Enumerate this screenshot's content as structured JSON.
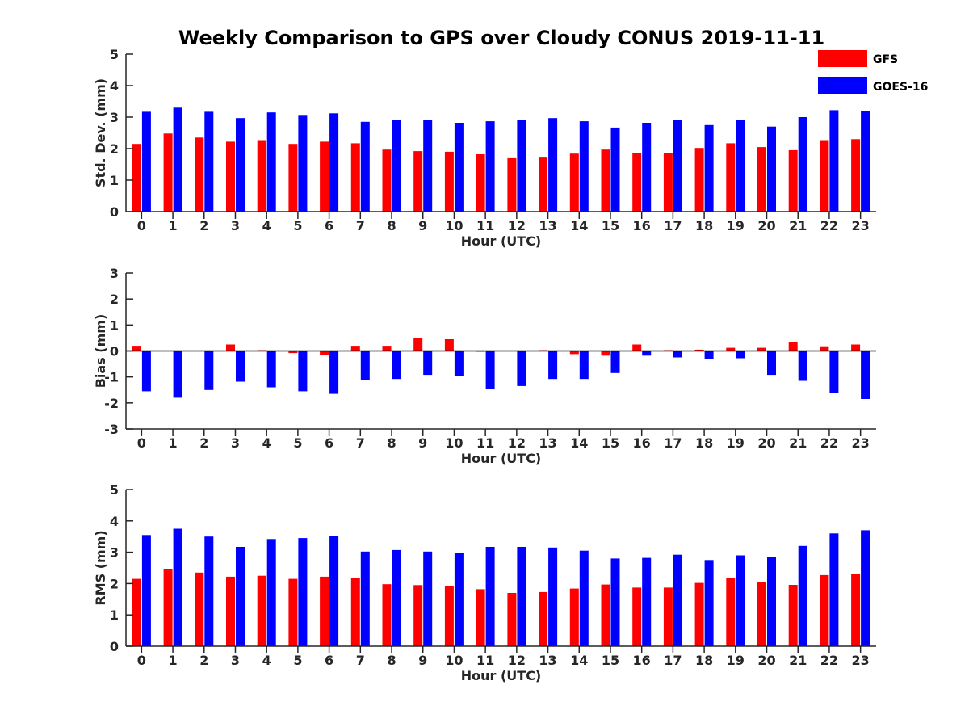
{
  "title": "Weekly Comparison to GPS over Cloudy CONUS 2019-11-11",
  "legend": {
    "placement": "top-right",
    "entries": [
      {
        "label": "GFS",
        "color": "#ff0000"
      },
      {
        "label": "GOES-16",
        "color": "#0000ff"
      }
    ]
  },
  "chart_data": [
    {
      "type": "bar",
      "xlabel": "Hour (UTC)",
      "ylabel": "Std. Dev. (mm)",
      "ylim": [
        0,
        5
      ],
      "yticks": [
        0,
        1,
        2,
        3,
        4,
        5
      ],
      "categories": [
        "0",
        "1",
        "2",
        "3",
        "4",
        "5",
        "6",
        "7",
        "8",
        "9",
        "10",
        "11",
        "12",
        "13",
        "14",
        "15",
        "16",
        "17",
        "18",
        "19",
        "20",
        "21",
        "22",
        "23"
      ],
      "series": [
        {
          "name": "GFS",
          "color": "#ff0000",
          "values": [
            2.15,
            2.48,
            2.35,
            2.22,
            2.27,
            2.15,
            2.22,
            2.17,
            1.97,
            1.92,
            1.9,
            1.82,
            1.72,
            1.74,
            1.84,
            1.97,
            1.87,
            1.87,
            2.02,
            2.17,
            2.05,
            1.95,
            2.27,
            2.3
          ]
        },
        {
          "name": "GOES-16",
          "color": "#0000ff",
          "values": [
            3.17,
            3.3,
            3.17,
            2.97,
            3.15,
            3.07,
            3.12,
            2.85,
            2.92,
            2.9,
            2.82,
            2.87,
            2.9,
            2.97,
            2.87,
            2.67,
            2.82,
            2.92,
            2.75,
            2.9,
            2.7,
            3.0,
            3.22,
            3.2
          ]
        }
      ]
    },
    {
      "type": "bar",
      "xlabel": "Hour (UTC)",
      "ylabel": "Bias (mm)",
      "ylim": [
        -3,
        3
      ],
      "yticks": [
        -3,
        -2,
        -1,
        0,
        1,
        2,
        3
      ],
      "zero_line": true,
      "categories": [
        "0",
        "1",
        "2",
        "3",
        "4",
        "5",
        "6",
        "7",
        "8",
        "9",
        "10",
        "11",
        "12",
        "13",
        "14",
        "15",
        "16",
        "17",
        "18",
        "19",
        "20",
        "21",
        "22",
        "23"
      ],
      "series": [
        {
          "name": "GFS",
          "color": "#ff0000",
          "values": [
            0.2,
            0.0,
            0.0,
            0.25,
            0.03,
            -0.08,
            -0.15,
            0.2,
            0.2,
            0.5,
            0.45,
            -0.03,
            0.0,
            0.03,
            -0.12,
            -0.18,
            0.25,
            0.03,
            0.05,
            0.12,
            0.12,
            0.35,
            0.18,
            0.25
          ]
        },
        {
          "name": "GOES-16",
          "color": "#0000ff",
          "values": [
            -1.55,
            -1.8,
            -1.5,
            -1.18,
            -1.4,
            -1.55,
            -1.65,
            -1.12,
            -1.08,
            -0.92,
            -0.95,
            -1.45,
            -1.35,
            -1.08,
            -1.08,
            -0.85,
            -0.18,
            -0.25,
            -0.32,
            -0.28,
            -0.92,
            -1.15,
            -1.6,
            -1.85
          ]
        }
      ]
    },
    {
      "type": "bar",
      "xlabel": "Hour (UTC)",
      "ylabel": "RMS (mm)",
      "ylim": [
        0,
        5
      ],
      "yticks": [
        0,
        1,
        2,
        3,
        4,
        5
      ],
      "categories": [
        "0",
        "1",
        "2",
        "3",
        "4",
        "5",
        "6",
        "7",
        "8",
        "9",
        "10",
        "11",
        "12",
        "13",
        "14",
        "15",
        "16",
        "17",
        "18",
        "19",
        "20",
        "21",
        "22",
        "23"
      ],
      "series": [
        {
          "name": "GFS",
          "color": "#ff0000",
          "values": [
            2.15,
            2.45,
            2.35,
            2.22,
            2.25,
            2.15,
            2.22,
            2.17,
            1.98,
            1.95,
            1.93,
            1.82,
            1.7,
            1.73,
            1.84,
            1.97,
            1.87,
            1.87,
            2.02,
            2.17,
            2.05,
            1.96,
            2.27,
            2.3
          ]
        },
        {
          "name": "GOES-16",
          "color": "#0000ff",
          "values": [
            3.55,
            3.75,
            3.5,
            3.17,
            3.42,
            3.45,
            3.52,
            3.02,
            3.07,
            3.02,
            2.97,
            3.17,
            3.17,
            3.15,
            3.05,
            2.8,
            2.82,
            2.92,
            2.75,
            2.9,
            2.85,
            3.2,
            3.6,
            3.7
          ]
        }
      ]
    }
  ]
}
